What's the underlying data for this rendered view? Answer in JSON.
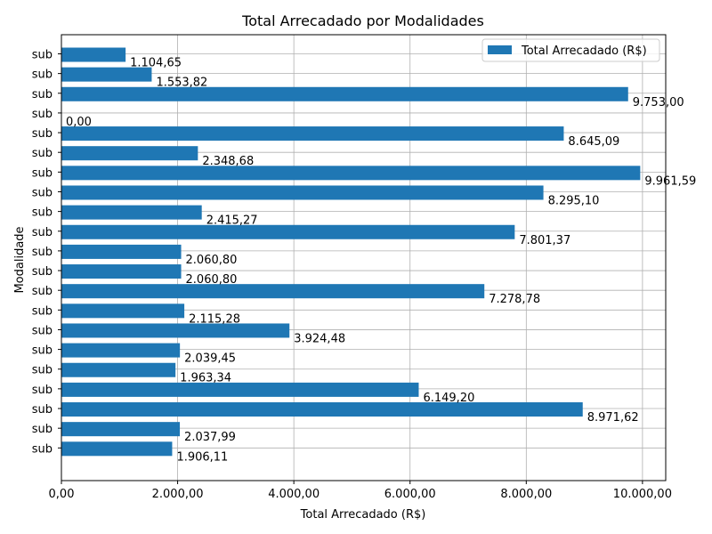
{
  "chart_data": {
    "type": "bar",
    "orientation": "horizontal",
    "title": "Total Arrecadado por Modalidades",
    "xlabel": "Total Arrecadado (R$)",
    "ylabel": "Modalidade",
    "xlim": [
      0,
      10400
    ],
    "xticks": [
      0,
      2000,
      4000,
      6000,
      8000,
      10000
    ],
    "xtick_labels": [
      "0,00",
      "2.000,00",
      "4.000,00",
      "6.000,00",
      "8.000,00",
      "10.000,00"
    ],
    "grid": true,
    "legend_position": "top-right",
    "bar_color": "#1f77b4",
    "categories": [
      "sub",
      "sub",
      "sub",
      "sub",
      "sub",
      "sub",
      "sub",
      "sub",
      "sub",
      "sub",
      "sub",
      "sub",
      "sub",
      "sub",
      "sub",
      "sub",
      "sub",
      "sub",
      "sub",
      "sub",
      "sub"
    ],
    "series": [
      {
        "name": "Total Arrecadado (R$)",
        "values": [
          1104.65,
          1553.82,
          9753.0,
          0.0,
          8645.09,
          2348.68,
          9961.59,
          8295.1,
          2415.27,
          7801.37,
          2060.8,
          2060.8,
          7278.78,
          2115.28,
          3924.48,
          2039.45,
          1963.34,
          6149.2,
          8971.62,
          2037.99,
          1906.11
        ],
        "labels": [
          "1.104,65",
          "1.553,82",
          "9.753,00",
          "0,00",
          "8.645,09",
          "2.348,68",
          "9.961,59",
          "8.295,10",
          "2.415,27",
          "7.801,37",
          "2.060,80",
          "2.060,80",
          "7.278,78",
          "2.115,28",
          "3.924,48",
          "2.039,45",
          "1.963,34",
          "6.149,20",
          "8.971,62",
          "2.037,99",
          "1.906,11"
        ]
      }
    ]
  }
}
